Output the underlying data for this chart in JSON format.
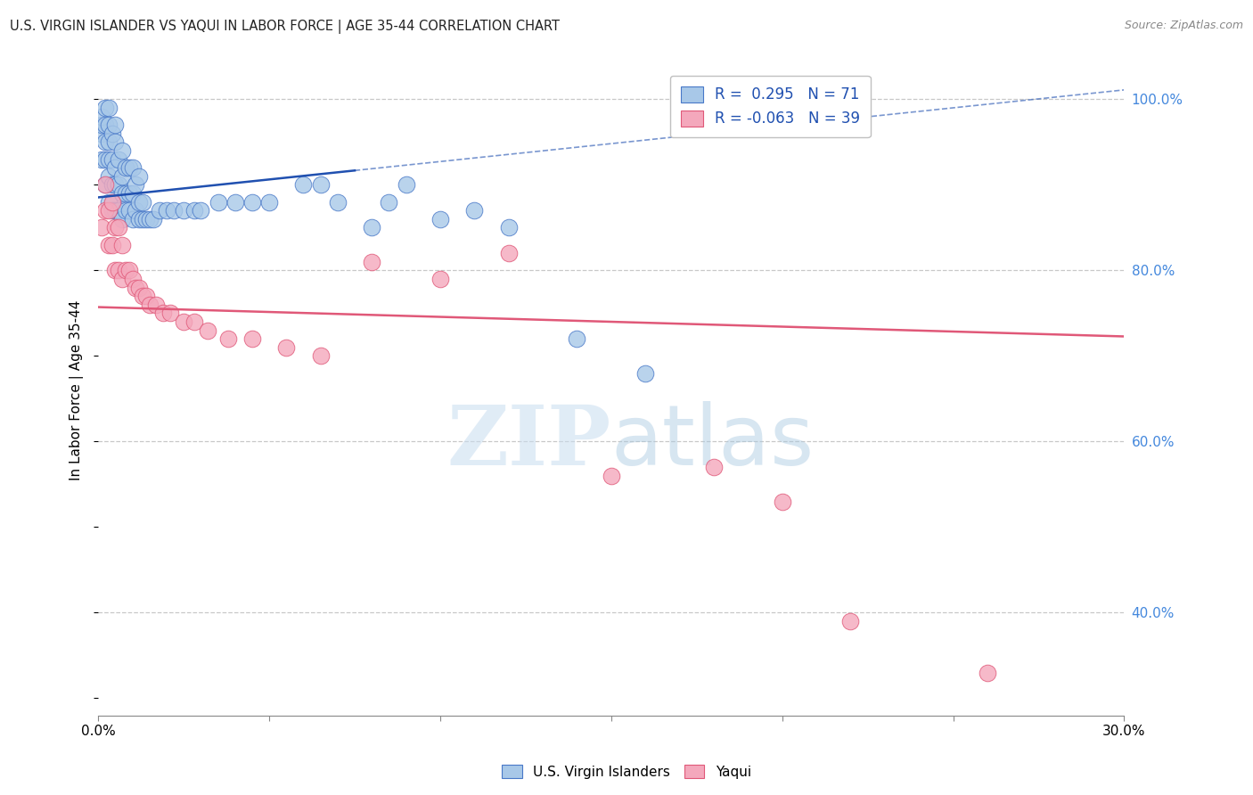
{
  "title": "U.S. VIRGIN ISLANDER VS YAQUI IN LABOR FORCE | AGE 35-44 CORRELATION CHART",
  "source": "Source: ZipAtlas.com",
  "ylabel": "In Labor Force | Age 35-44",
  "xlim": [
    0.0,
    0.3
  ],
  "ylim": [
    0.28,
    1.04
  ],
  "xticks": [
    0.0,
    0.05,
    0.1,
    0.15,
    0.2,
    0.25,
    0.3
  ],
  "xticklabels": [
    "0.0%",
    "",
    "",
    "",
    "",
    "",
    "30.0%"
  ],
  "yticks_right": [
    0.4,
    0.6,
    0.8,
    1.0
  ],
  "yticklabels_right": [
    "40.0%",
    "60.0%",
    "80.0%",
    "100.0%"
  ],
  "grid_lines": [
    0.4,
    0.6,
    0.8,
    1.0
  ],
  "blue_R": 0.295,
  "blue_N": 71,
  "pink_R": -0.063,
  "pink_N": 39,
  "blue_color": "#a8c8e8",
  "pink_color": "#f4a8bc",
  "blue_edge_color": "#4878c8",
  "pink_edge_color": "#e05878",
  "blue_line_color": "#2050b0",
  "pink_line_color": "#e05878",
  "legend_label_blue": "U.S. Virgin Islanders",
  "legend_label_pink": "Yaqui",
  "watermark_zip": "ZIP",
  "watermark_atlas": "atlas",
  "blue_x": [
    0.001,
    0.001,
    0.001,
    0.001,
    0.002,
    0.002,
    0.002,
    0.002,
    0.002,
    0.003,
    0.003,
    0.003,
    0.003,
    0.003,
    0.003,
    0.004,
    0.004,
    0.004,
    0.004,
    0.005,
    0.005,
    0.005,
    0.005,
    0.005,
    0.006,
    0.006,
    0.006,
    0.007,
    0.007,
    0.007,
    0.007,
    0.008,
    0.008,
    0.008,
    0.009,
    0.009,
    0.009,
    0.01,
    0.01,
    0.01,
    0.011,
    0.011,
    0.012,
    0.012,
    0.012,
    0.013,
    0.013,
    0.014,
    0.015,
    0.016,
    0.018,
    0.02,
    0.022,
    0.025,
    0.028,
    0.03,
    0.035,
    0.04,
    0.045,
    0.05,
    0.06,
    0.065,
    0.07,
    0.08,
    0.085,
    0.09,
    0.1,
    0.11,
    0.12,
    0.14,
    0.16
  ],
  "blue_y": [
    0.93,
    0.96,
    0.97,
    0.98,
    0.9,
    0.93,
    0.95,
    0.97,
    0.99,
    0.88,
    0.91,
    0.93,
    0.95,
    0.97,
    0.99,
    0.87,
    0.9,
    0.93,
    0.96,
    0.87,
    0.9,
    0.92,
    0.95,
    0.97,
    0.87,
    0.9,
    0.93,
    0.86,
    0.89,
    0.91,
    0.94,
    0.87,
    0.89,
    0.92,
    0.87,
    0.89,
    0.92,
    0.86,
    0.89,
    0.92,
    0.87,
    0.9,
    0.86,
    0.88,
    0.91,
    0.86,
    0.88,
    0.86,
    0.86,
    0.86,
    0.87,
    0.87,
    0.87,
    0.87,
    0.87,
    0.87,
    0.88,
    0.88,
    0.88,
    0.88,
    0.9,
    0.9,
    0.88,
    0.85,
    0.88,
    0.9,
    0.86,
    0.87,
    0.85,
    0.72,
    0.68
  ],
  "pink_x": [
    0.001,
    0.002,
    0.002,
    0.003,
    0.003,
    0.004,
    0.004,
    0.005,
    0.005,
    0.006,
    0.006,
    0.007,
    0.007,
    0.008,
    0.009,
    0.01,
    0.011,
    0.012,
    0.013,
    0.014,
    0.015,
    0.017,
    0.019,
    0.021,
    0.025,
    0.028,
    0.032,
    0.038,
    0.045,
    0.055,
    0.065,
    0.08,
    0.1,
    0.12,
    0.15,
    0.18,
    0.2,
    0.22,
    0.26
  ],
  "pink_y": [
    0.85,
    0.87,
    0.9,
    0.83,
    0.87,
    0.83,
    0.88,
    0.8,
    0.85,
    0.8,
    0.85,
    0.79,
    0.83,
    0.8,
    0.8,
    0.79,
    0.78,
    0.78,
    0.77,
    0.77,
    0.76,
    0.76,
    0.75,
    0.75,
    0.74,
    0.74,
    0.73,
    0.72,
    0.72,
    0.71,
    0.7,
    0.81,
    0.79,
    0.82,
    0.56,
    0.57,
    0.53,
    0.39,
    0.33
  ]
}
